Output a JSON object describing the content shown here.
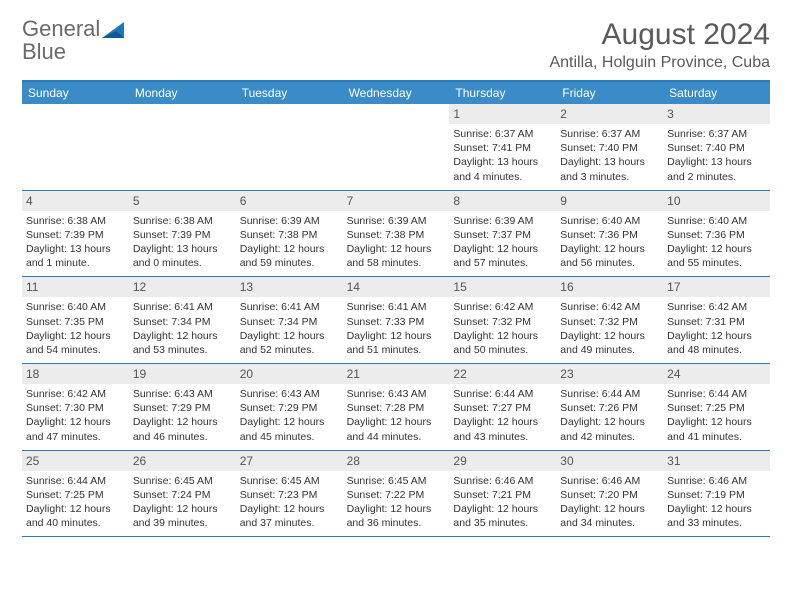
{
  "logo": {
    "word1": "General",
    "word2": "Blue"
  },
  "title": "August 2024",
  "location": "Antilla, Holguin Province, Cuba",
  "colors": {
    "header_bg": "#3a8cc8",
    "border": "#2a7cb8",
    "datenum_bg": "#ececec",
    "text": "#333333",
    "muted": "#5a5a5a"
  },
  "daynames": [
    "Sunday",
    "Monday",
    "Tuesday",
    "Wednesday",
    "Thursday",
    "Friday",
    "Saturday"
  ],
  "weeks": [
    [
      {
        "empty": true
      },
      {
        "empty": true
      },
      {
        "empty": true
      },
      {
        "empty": true
      },
      {
        "num": "1",
        "sunrise": "Sunrise: 6:37 AM",
        "sunset": "Sunset: 7:41 PM",
        "daylight": "Daylight: 13 hours and 4 minutes."
      },
      {
        "num": "2",
        "sunrise": "Sunrise: 6:37 AM",
        "sunset": "Sunset: 7:40 PM",
        "daylight": "Daylight: 13 hours and 3 minutes."
      },
      {
        "num": "3",
        "sunrise": "Sunrise: 6:37 AM",
        "sunset": "Sunset: 7:40 PM",
        "daylight": "Daylight: 13 hours and 2 minutes."
      }
    ],
    [
      {
        "num": "4",
        "sunrise": "Sunrise: 6:38 AM",
        "sunset": "Sunset: 7:39 PM",
        "daylight": "Daylight: 13 hours and 1 minute."
      },
      {
        "num": "5",
        "sunrise": "Sunrise: 6:38 AM",
        "sunset": "Sunset: 7:39 PM",
        "daylight": "Daylight: 13 hours and 0 minutes."
      },
      {
        "num": "6",
        "sunrise": "Sunrise: 6:39 AM",
        "sunset": "Sunset: 7:38 PM",
        "daylight": "Daylight: 12 hours and 59 minutes."
      },
      {
        "num": "7",
        "sunrise": "Sunrise: 6:39 AM",
        "sunset": "Sunset: 7:38 PM",
        "daylight": "Daylight: 12 hours and 58 minutes."
      },
      {
        "num": "8",
        "sunrise": "Sunrise: 6:39 AM",
        "sunset": "Sunset: 7:37 PM",
        "daylight": "Daylight: 12 hours and 57 minutes."
      },
      {
        "num": "9",
        "sunrise": "Sunrise: 6:40 AM",
        "sunset": "Sunset: 7:36 PM",
        "daylight": "Daylight: 12 hours and 56 minutes."
      },
      {
        "num": "10",
        "sunrise": "Sunrise: 6:40 AM",
        "sunset": "Sunset: 7:36 PM",
        "daylight": "Daylight: 12 hours and 55 minutes."
      }
    ],
    [
      {
        "num": "11",
        "sunrise": "Sunrise: 6:40 AM",
        "sunset": "Sunset: 7:35 PM",
        "daylight": "Daylight: 12 hours and 54 minutes."
      },
      {
        "num": "12",
        "sunrise": "Sunrise: 6:41 AM",
        "sunset": "Sunset: 7:34 PM",
        "daylight": "Daylight: 12 hours and 53 minutes."
      },
      {
        "num": "13",
        "sunrise": "Sunrise: 6:41 AM",
        "sunset": "Sunset: 7:34 PM",
        "daylight": "Daylight: 12 hours and 52 minutes."
      },
      {
        "num": "14",
        "sunrise": "Sunrise: 6:41 AM",
        "sunset": "Sunset: 7:33 PM",
        "daylight": "Daylight: 12 hours and 51 minutes."
      },
      {
        "num": "15",
        "sunrise": "Sunrise: 6:42 AM",
        "sunset": "Sunset: 7:32 PM",
        "daylight": "Daylight: 12 hours and 50 minutes."
      },
      {
        "num": "16",
        "sunrise": "Sunrise: 6:42 AM",
        "sunset": "Sunset: 7:32 PM",
        "daylight": "Daylight: 12 hours and 49 minutes."
      },
      {
        "num": "17",
        "sunrise": "Sunrise: 6:42 AM",
        "sunset": "Sunset: 7:31 PM",
        "daylight": "Daylight: 12 hours and 48 minutes."
      }
    ],
    [
      {
        "num": "18",
        "sunrise": "Sunrise: 6:42 AM",
        "sunset": "Sunset: 7:30 PM",
        "daylight": "Daylight: 12 hours and 47 minutes."
      },
      {
        "num": "19",
        "sunrise": "Sunrise: 6:43 AM",
        "sunset": "Sunset: 7:29 PM",
        "daylight": "Daylight: 12 hours and 46 minutes."
      },
      {
        "num": "20",
        "sunrise": "Sunrise: 6:43 AM",
        "sunset": "Sunset: 7:29 PM",
        "daylight": "Daylight: 12 hours and 45 minutes."
      },
      {
        "num": "21",
        "sunrise": "Sunrise: 6:43 AM",
        "sunset": "Sunset: 7:28 PM",
        "daylight": "Daylight: 12 hours and 44 minutes."
      },
      {
        "num": "22",
        "sunrise": "Sunrise: 6:44 AM",
        "sunset": "Sunset: 7:27 PM",
        "daylight": "Daylight: 12 hours and 43 minutes."
      },
      {
        "num": "23",
        "sunrise": "Sunrise: 6:44 AM",
        "sunset": "Sunset: 7:26 PM",
        "daylight": "Daylight: 12 hours and 42 minutes."
      },
      {
        "num": "24",
        "sunrise": "Sunrise: 6:44 AM",
        "sunset": "Sunset: 7:25 PM",
        "daylight": "Daylight: 12 hours and 41 minutes."
      }
    ],
    [
      {
        "num": "25",
        "sunrise": "Sunrise: 6:44 AM",
        "sunset": "Sunset: 7:25 PM",
        "daylight": "Daylight: 12 hours and 40 minutes."
      },
      {
        "num": "26",
        "sunrise": "Sunrise: 6:45 AM",
        "sunset": "Sunset: 7:24 PM",
        "daylight": "Daylight: 12 hours and 39 minutes."
      },
      {
        "num": "27",
        "sunrise": "Sunrise: 6:45 AM",
        "sunset": "Sunset: 7:23 PM",
        "daylight": "Daylight: 12 hours and 37 minutes."
      },
      {
        "num": "28",
        "sunrise": "Sunrise: 6:45 AM",
        "sunset": "Sunset: 7:22 PM",
        "daylight": "Daylight: 12 hours and 36 minutes."
      },
      {
        "num": "29",
        "sunrise": "Sunrise: 6:46 AM",
        "sunset": "Sunset: 7:21 PM",
        "daylight": "Daylight: 12 hours and 35 minutes."
      },
      {
        "num": "30",
        "sunrise": "Sunrise: 6:46 AM",
        "sunset": "Sunset: 7:20 PM",
        "daylight": "Daylight: 12 hours and 34 minutes."
      },
      {
        "num": "31",
        "sunrise": "Sunrise: 6:46 AM",
        "sunset": "Sunset: 7:19 PM",
        "daylight": "Daylight: 12 hours and 33 minutes."
      }
    ]
  ]
}
